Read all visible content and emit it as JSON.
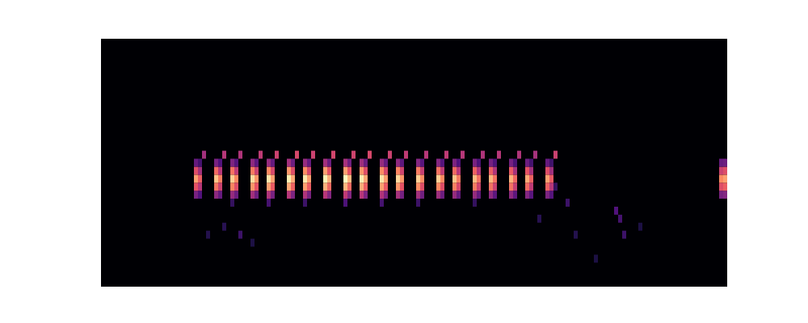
{
  "chart_data": {
    "type": "heatmap",
    "xlim": [
      0,
      155
    ],
    "ylim": [
      0,
      31
    ],
    "tick_labels": false,
    "grid": false,
    "color_range": [
      0,
      100
    ],
    "cells": [
      [
        23,
        11,
        35
      ],
      [
        23,
        12,
        62
      ],
      [
        23,
        13,
        80
      ],
      [
        23,
        14,
        60
      ],
      [
        23,
        15,
        30
      ],
      [
        24,
        11,
        25
      ],
      [
        24,
        12,
        50
      ],
      [
        24,
        13,
        65
      ],
      [
        24,
        14,
        45
      ],
      [
        24,
        15,
        22
      ],
      [
        25,
        16,
        45
      ],
      [
        28,
        11,
        40
      ],
      [
        28,
        12,
        70
      ],
      [
        28,
        13,
        88
      ],
      [
        28,
        14,
        68
      ],
      [
        28,
        15,
        35
      ],
      [
        29,
        11,
        30
      ],
      [
        29,
        12,
        55
      ],
      [
        29,
        13,
        72
      ],
      [
        29,
        14,
        50
      ],
      [
        29,
        15,
        25
      ],
      [
        30,
        16,
        50
      ],
      [
        32,
        10,
        18
      ],
      [
        32,
        11,
        42
      ],
      [
        32,
        12,
        74
      ],
      [
        32,
        13,
        90
      ],
      [
        32,
        14,
        70
      ],
      [
        32,
        15,
        36
      ],
      [
        33,
        11,
        32
      ],
      [
        33,
        12,
        60
      ],
      [
        33,
        13,
        75
      ],
      [
        33,
        14,
        52
      ],
      [
        33,
        15,
        26
      ],
      [
        34,
        16,
        48
      ],
      [
        37,
        11,
        45
      ],
      [
        37,
        12,
        78
      ],
      [
        37,
        13,
        93
      ],
      [
        37,
        14,
        72
      ],
      [
        37,
        15,
        40
      ],
      [
        38,
        11,
        33
      ],
      [
        38,
        12,
        62
      ],
      [
        38,
        13,
        78
      ],
      [
        38,
        14,
        55
      ],
      [
        38,
        15,
        28
      ],
      [
        39,
        16,
        52
      ],
      [
        41,
        10,
        22
      ],
      [
        41,
        11,
        48
      ],
      [
        41,
        12,
        80
      ],
      [
        41,
        13,
        95
      ],
      [
        41,
        14,
        75
      ],
      [
        41,
        15,
        42
      ],
      [
        42,
        11,
        35
      ],
      [
        42,
        12,
        64
      ],
      [
        42,
        13,
        80
      ],
      [
        42,
        14,
        58
      ],
      [
        42,
        15,
        30
      ],
      [
        43,
        16,
        55
      ],
      [
        46,
        11,
        50
      ],
      [
        46,
        12,
        82
      ],
      [
        46,
        13,
        97
      ],
      [
        46,
        14,
        78
      ],
      [
        46,
        15,
        45
      ],
      [
        47,
        11,
        36
      ],
      [
        47,
        12,
        66
      ],
      [
        47,
        13,
        82
      ],
      [
        47,
        14,
        60
      ],
      [
        47,
        15,
        32
      ],
      [
        48,
        16,
        58
      ],
      [
        50,
        10,
        20
      ],
      [
        50,
        11,
        48
      ],
      [
        50,
        12,
        80
      ],
      [
        50,
        13,
        96
      ],
      [
        50,
        14,
        76
      ],
      [
        50,
        15,
        42
      ],
      [
        51,
        11,
        35
      ],
      [
        51,
        12,
        65
      ],
      [
        51,
        13,
        80
      ],
      [
        51,
        14,
        58
      ],
      [
        51,
        15,
        30
      ],
      [
        52,
        16,
        55
      ],
      [
        55,
        11,
        50
      ],
      [
        55,
        12,
        84
      ],
      [
        55,
        13,
        98
      ],
      [
        55,
        14,
        80
      ],
      [
        55,
        15,
        45
      ],
      [
        56,
        11,
        38
      ],
      [
        56,
        12,
        68
      ],
      [
        56,
        13,
        84
      ],
      [
        56,
        14,
        62
      ],
      [
        56,
        15,
        32
      ],
      [
        57,
        16,
        57
      ],
      [
        60,
        10,
        24
      ],
      [
        60,
        11,
        52
      ],
      [
        60,
        12,
        85
      ],
      [
        60,
        13,
        100
      ],
      [
        60,
        14,
        80
      ],
      [
        60,
        15,
        46
      ],
      [
        61,
        11,
        38
      ],
      [
        61,
        12,
        68
      ],
      [
        61,
        13,
        85
      ],
      [
        61,
        14,
        62
      ],
      [
        61,
        15,
        33
      ],
      [
        62,
        16,
        56
      ],
      [
        64,
        11,
        50
      ],
      [
        64,
        12,
        83
      ],
      [
        64,
        13,
        97
      ],
      [
        64,
        14,
        78
      ],
      [
        64,
        15,
        44
      ],
      [
        65,
        11,
        36
      ],
      [
        65,
        12,
        66
      ],
      [
        65,
        13,
        82
      ],
      [
        65,
        14,
        60
      ],
      [
        65,
        15,
        31
      ],
      [
        66,
        16,
        58
      ],
      [
        69,
        10,
        22
      ],
      [
        69,
        11,
        48
      ],
      [
        69,
        12,
        80
      ],
      [
        69,
        13,
        95
      ],
      [
        69,
        14,
        76
      ],
      [
        69,
        15,
        42
      ],
      [
        70,
        11,
        35
      ],
      [
        70,
        12,
        64
      ],
      [
        70,
        13,
        80
      ],
      [
        70,
        14,
        58
      ],
      [
        70,
        15,
        30
      ],
      [
        71,
        16,
        55
      ],
      [
        73,
        11,
        46
      ],
      [
        73,
        12,
        78
      ],
      [
        73,
        13,
        92
      ],
      [
        73,
        14,
        74
      ],
      [
        73,
        15,
        40
      ],
      [
        74,
        11,
        34
      ],
      [
        74,
        12,
        62
      ],
      [
        74,
        13,
        78
      ],
      [
        74,
        14,
        56
      ],
      [
        74,
        15,
        28
      ],
      [
        75,
        16,
        52
      ],
      [
        78,
        10,
        20
      ],
      [
        78,
        11,
        45
      ],
      [
        78,
        12,
        76
      ],
      [
        78,
        13,
        90
      ],
      [
        78,
        14,
        72
      ],
      [
        78,
        15,
        38
      ],
      [
        79,
        11,
        33
      ],
      [
        79,
        12,
        60
      ],
      [
        79,
        13,
        76
      ],
      [
        79,
        14,
        54
      ],
      [
        79,
        15,
        27
      ],
      [
        80,
        16,
        50
      ],
      [
        83,
        11,
        44
      ],
      [
        83,
        12,
        75
      ],
      [
        83,
        13,
        90
      ],
      [
        83,
        14,
        70
      ],
      [
        83,
        15,
        38
      ],
      [
        84,
        11,
        32
      ],
      [
        84,
        12,
        60
      ],
      [
        84,
        13,
        75
      ],
      [
        84,
        14,
        52
      ],
      [
        84,
        15,
        26
      ],
      [
        85,
        16,
        52
      ],
      [
        87,
        11,
        42
      ],
      [
        87,
        12,
        73
      ],
      [
        87,
        13,
        88
      ],
      [
        87,
        14,
        68
      ],
      [
        87,
        15,
        36
      ],
      [
        88,
        11,
        30
      ],
      [
        88,
        12,
        58
      ],
      [
        88,
        13,
        72
      ],
      [
        88,
        14,
        50
      ],
      [
        88,
        15,
        25
      ],
      [
        89,
        16,
        50
      ],
      [
        92,
        10,
        18
      ],
      [
        92,
        11,
        42
      ],
      [
        92,
        12,
        72
      ],
      [
        92,
        13,
        86
      ],
      [
        92,
        14,
        66
      ],
      [
        92,
        15,
        35
      ],
      [
        93,
        11,
        30
      ],
      [
        93,
        12,
        56
      ],
      [
        93,
        13,
        70
      ],
      [
        93,
        14,
        48
      ],
      [
        93,
        15,
        24
      ],
      [
        94,
        16,
        48
      ],
      [
        96,
        11,
        40
      ],
      [
        96,
        12,
        70
      ],
      [
        96,
        13,
        85
      ],
      [
        96,
        14,
        65
      ],
      [
        96,
        15,
        34
      ],
      [
        97,
        11,
        28
      ],
      [
        97,
        12,
        55
      ],
      [
        97,
        13,
        70
      ],
      [
        97,
        14,
        48
      ],
      [
        97,
        15,
        24
      ],
      [
        98,
        16,
        50
      ],
      [
        101,
        11,
        40
      ],
      [
        101,
        12,
        70
      ],
      [
        101,
        13,
        84
      ],
      [
        101,
        14,
        64
      ],
      [
        101,
        15,
        34
      ],
      [
        102,
        11,
        28
      ],
      [
        102,
        12,
        54
      ],
      [
        102,
        13,
        68
      ],
      [
        102,
        14,
        46
      ],
      [
        102,
        15,
        23
      ],
      [
        103,
        16,
        48
      ],
      [
        105,
        11,
        38
      ],
      [
        105,
        12,
        68
      ],
      [
        105,
        13,
        82
      ],
      [
        105,
        14,
        62
      ],
      [
        105,
        15,
        32
      ],
      [
        106,
        11,
        27
      ],
      [
        106,
        12,
        52
      ],
      [
        106,
        13,
        66
      ],
      [
        106,
        14,
        45
      ],
      [
        106,
        15,
        22
      ],
      [
        107,
        16,
        46
      ],
      [
        110,
        11,
        36
      ],
      [
        110,
        12,
        66
      ],
      [
        110,
        13,
        80
      ],
      [
        110,
        14,
        60
      ],
      [
        110,
        15,
        30
      ],
      [
        111,
        11,
        26
      ],
      [
        111,
        12,
        50
      ],
      [
        111,
        13,
        64
      ],
      [
        111,
        14,
        44
      ],
      [
        111,
        15,
        21
      ],
      [
        112,
        16,
        55
      ],
      [
        153,
        11,
        35
      ],
      [
        153,
        12,
        60
      ],
      [
        153,
        13,
        75
      ],
      [
        153,
        14,
        55
      ],
      [
        153,
        15,
        30
      ],
      [
        154,
        11,
        38
      ],
      [
        154,
        12,
        65
      ],
      [
        154,
        13,
        80
      ],
      [
        154,
        14,
        60
      ],
      [
        154,
        15,
        32
      ],
      [
        30,
        7,
        15
      ],
      [
        34,
        6,
        20
      ],
      [
        37,
        5,
        12
      ],
      [
        26,
        6,
        14
      ],
      [
        112,
        12,
        18
      ],
      [
        108,
        8,
        15
      ],
      [
        115,
        10,
        20
      ],
      [
        117,
        6,
        14
      ],
      [
        127,
        9,
        25
      ],
      [
        128,
        8,
        22
      ],
      [
        129,
        6,
        20
      ],
      [
        122,
        3,
        12
      ],
      [
        133,
        7,
        12
      ]
    ]
  }
}
